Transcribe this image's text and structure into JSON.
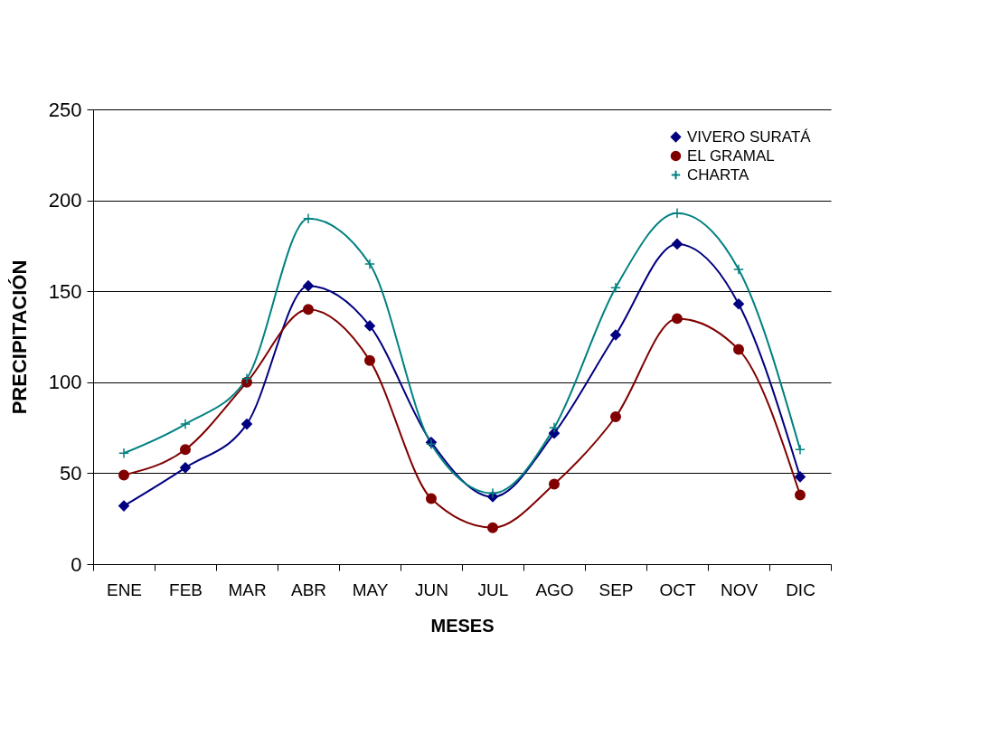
{
  "chart_data": {
    "type": "line",
    "xlabel": "MESES",
    "ylabel": "PRECIPITACIÓN",
    "categories": [
      "ENE",
      "FEB",
      "MAR",
      "ABR",
      "MAY",
      "JUN",
      "JUL",
      "AGO",
      "SEP",
      "OCT",
      "NOV",
      "DIC"
    ],
    "series": [
      {
        "name": "VIVERO SURATÁ",
        "color": "#000080",
        "marker": "diamond",
        "values": [
          32,
          53,
          77,
          153,
          131,
          67,
          37,
          72,
          126,
          176,
          143,
          48
        ]
      },
      {
        "name": "EL GRAMAL",
        "color": "#800000",
        "marker": "circle",
        "values": [
          49,
          63,
          100,
          140,
          112,
          36,
          20,
          44,
          81,
          135,
          118,
          38
        ]
      },
      {
        "name": "CHARTA",
        "color": "#008080",
        "marker": "cross",
        "values": [
          61,
          77,
          102,
          190,
          165,
          66,
          39,
          75,
          152,
          193,
          162,
          63
        ]
      }
    ],
    "ylim": [
      0,
      250
    ],
    "yticks": [
      0,
      50,
      100,
      150,
      200,
      250
    ],
    "grid": "y",
    "legend": "top right",
    "line_style": "solid"
  }
}
